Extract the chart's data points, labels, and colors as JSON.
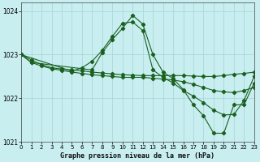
{
  "title": "Graphe pression niveau de la mer (hPa)",
  "bg_color": "#c8eef0",
  "grid_color": "#a8d8dc",
  "line_color": "#1a6020",
  "xlim": [
    0,
    23
  ],
  "ylim": [
    1021.0,
    1024.2
  ],
  "yticks": [
    1021,
    1022,
    1023,
    1024
  ],
  "xticks": [
    0,
    1,
    2,
    3,
    4,
    5,
    6,
    7,
    8,
    9,
    10,
    11,
    12,
    13,
    14,
    15,
    16,
    17,
    18,
    19,
    20,
    21,
    22,
    23
  ],
  "series": [
    {
      "x": [
        0,
        1,
        2,
        3,
        4,
        5,
        6,
        7,
        8,
        9,
        10,
        11,
        12,
        13,
        14,
        15,
        16,
        17,
        18,
        19,
        20,
        21,
        22,
        23
      ],
      "y": [
        1023.0,
        1022.88,
        1022.77,
        1022.7,
        1022.67,
        1022.65,
        1022.63,
        1022.6,
        1022.58,
        1022.56,
        1022.54,
        1022.53,
        1022.52,
        1022.52,
        1022.52,
        1022.52,
        1022.52,
        1022.51,
        1022.5,
        1022.5,
        1022.52,
        1022.55,
        1022.57,
        1022.6
      ]
    },
    {
      "x": [
        0,
        1,
        7,
        8,
        9,
        10,
        11,
        12,
        13,
        14,
        15,
        16,
        17,
        18,
        19,
        20,
        21,
        22,
        23
      ],
      "y": [
        1023.0,
        1022.82,
        1022.65,
        1023.05,
        1023.35,
        1023.6,
        1023.9,
        1023.7,
        1023.0,
        1022.6,
        1022.45,
        1022.2,
        1021.85,
        1021.6,
        1021.2,
        1021.2,
        1021.85,
        1021.85,
        1022.35
      ]
    },
    {
      "x": [
        0,
        1,
        2,
        3,
        4,
        5,
        6,
        7,
        8,
        9,
        10,
        11,
        12,
        13,
        14,
        15,
        16,
        17,
        18,
        19,
        20,
        21,
        22,
        23
      ],
      "y": [
        1023.0,
        1022.82,
        1022.74,
        1022.68,
        1022.64,
        1022.6,
        1022.57,
        1022.54,
        1022.52,
        1022.5,
        1022.48,
        1022.48,
        1022.48,
        1022.46,
        1022.44,
        1022.42,
        1022.38,
        1022.32,
        1022.25,
        1022.18,
        1022.15,
        1022.13,
        1022.18,
        1022.25
      ]
    },
    {
      "x": [
        0,
        5,
        6,
        7,
        8,
        9,
        10,
        11,
        12,
        13,
        14,
        15,
        16,
        17,
        18,
        19,
        20,
        21,
        22,
        23
      ],
      "y": [
        1023.0,
        1022.62,
        1022.7,
        1022.85,
        1023.1,
        1023.42,
        1023.72,
        1023.75,
        1023.55,
        1022.65,
        1022.48,
        1022.35,
        1022.18,
        1022.05,
        1021.9,
        1021.73,
        1021.62,
        1021.63,
        1021.95,
        1022.5
      ]
    }
  ]
}
